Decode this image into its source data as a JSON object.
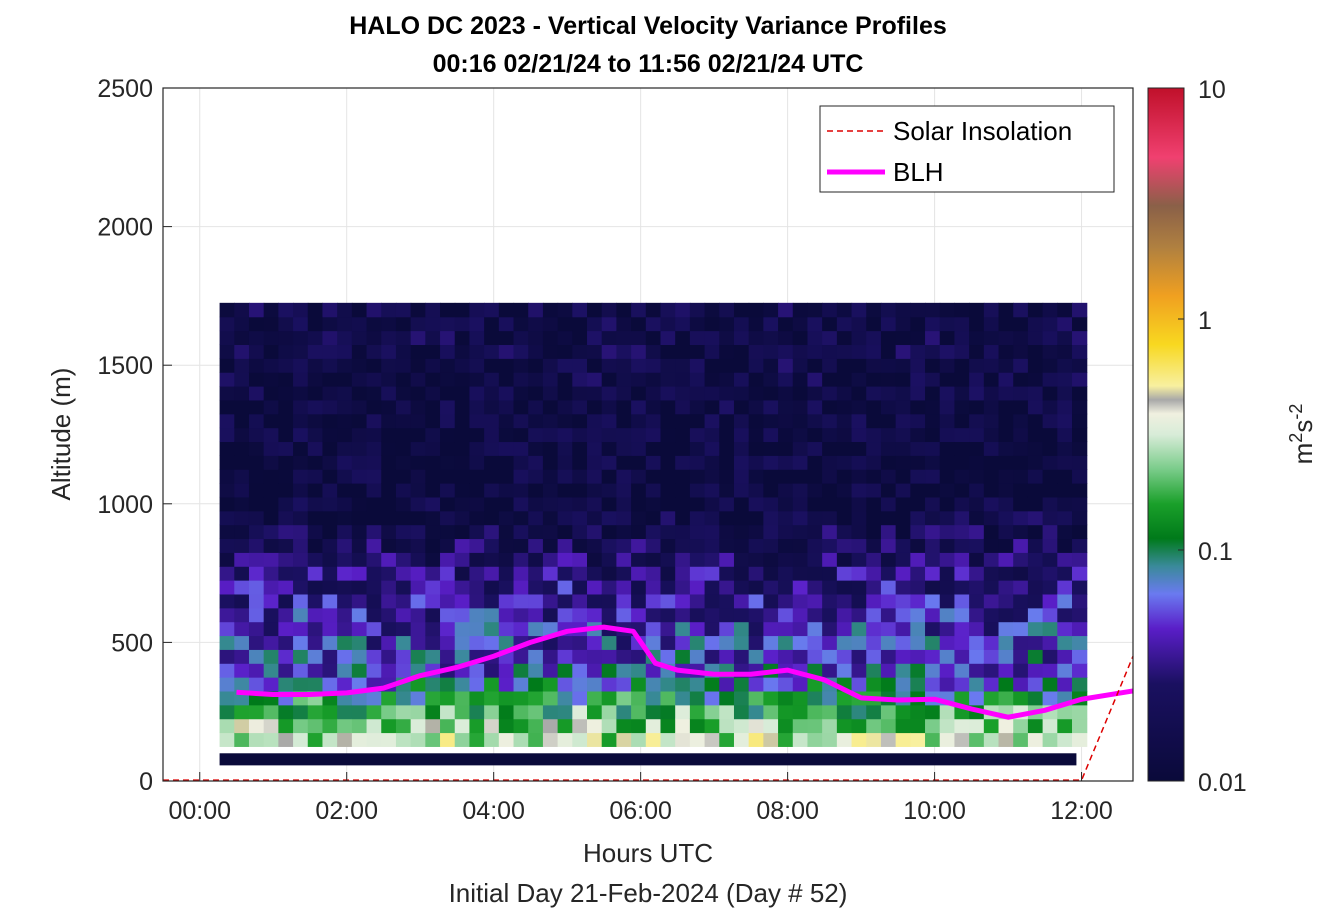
{
  "title_line1": "HALO DC 2023 - Vertical Velocity Variance Profiles",
  "title_line2": "00:16 02/21/24 to 11:56 02/21/24  UTC",
  "xlabel": "Hours UTC",
  "ylabel": "Altitude (m)",
  "subtitle": "Initial Day 21-Feb-2024 (Day # 52)",
  "colorbar_label_base": "m",
  "colorbar_label_exp1": "2",
  "colorbar_label_s": "s",
  "colorbar_label_exp2": "-2",
  "chart_data": {
    "type": "heatmap",
    "x_unit": "hours UTC",
    "y_unit": "m",
    "xlim": [
      -0.5,
      12.7
    ],
    "ylim": [
      0,
      2500
    ],
    "x_ticks": [
      0,
      2,
      4,
      6,
      8,
      10,
      12
    ],
    "x_tick_labels": [
      "00:00",
      "02:00",
      "04:00",
      "06:00",
      "08:00",
      "10:00",
      "12:00"
    ],
    "y_ticks": [
      0,
      500,
      1000,
      1500,
      2000,
      2500
    ],
    "y_tick_labels": [
      "0",
      "500",
      "1000",
      "1500",
      "2000",
      "2500"
    ],
    "grid": true,
    "colorbar": {
      "scale": "log",
      "range": [
        0.01,
        10
      ],
      "ticks": [
        0.01,
        0.1,
        1,
        10
      ],
      "tick_labels": [
        "0.01",
        "0.1",
        "1",
        "10"
      ]
    },
    "time_range": [
      0.27,
      11.93
    ],
    "lowest_gate_m": 100,
    "cloud_top_m": 1720,
    "variance_profiles_m2s2": [
      {
        "altitude_m": 150,
        "value": 0.3
      },
      {
        "altitude_m": 200,
        "value": 0.2
      },
      {
        "altitude_m": 250,
        "value": 0.15
      },
      {
        "altitude_m": 300,
        "value": 0.1
      },
      {
        "altitude_m": 350,
        "value": 0.06
      },
      {
        "altitude_m": 500,
        "value": 0.05
      },
      {
        "altitude_m": 1000,
        "value": 0.012
      },
      {
        "altitude_m": 1500,
        "value": 0.015
      }
    ],
    "legend": {
      "placement": "top-right",
      "entries": [
        "Solar Insolation",
        "BLH"
      ]
    },
    "series": [
      {
        "name": "BLH",
        "color": "#ff00ff",
        "x": [
          0.5,
          1.0,
          1.5,
          2.0,
          2.5,
          3.0,
          3.5,
          4.0,
          4.5,
          5.0,
          5.5,
          5.9,
          6.2,
          6.5,
          7.0,
          7.5,
          8.0,
          8.5,
          9.0,
          9.5,
          10.0,
          10.5,
          11.0,
          11.5,
          12.0,
          12.7
        ],
        "y": [
          320,
          312,
          312,
          318,
          335,
          380,
          410,
          450,
          500,
          540,
          555,
          540,
          425,
          400,
          385,
          385,
          400,
          365,
          300,
          292,
          295,
          260,
          230,
          255,
          295,
          325
        ]
      },
      {
        "name": "Solar Insolation",
        "color": "#dd0000",
        "x": [
          -0.5,
          12.0,
          12.7
        ],
        "y": [
          3,
          3,
          450
        ]
      }
    ]
  }
}
